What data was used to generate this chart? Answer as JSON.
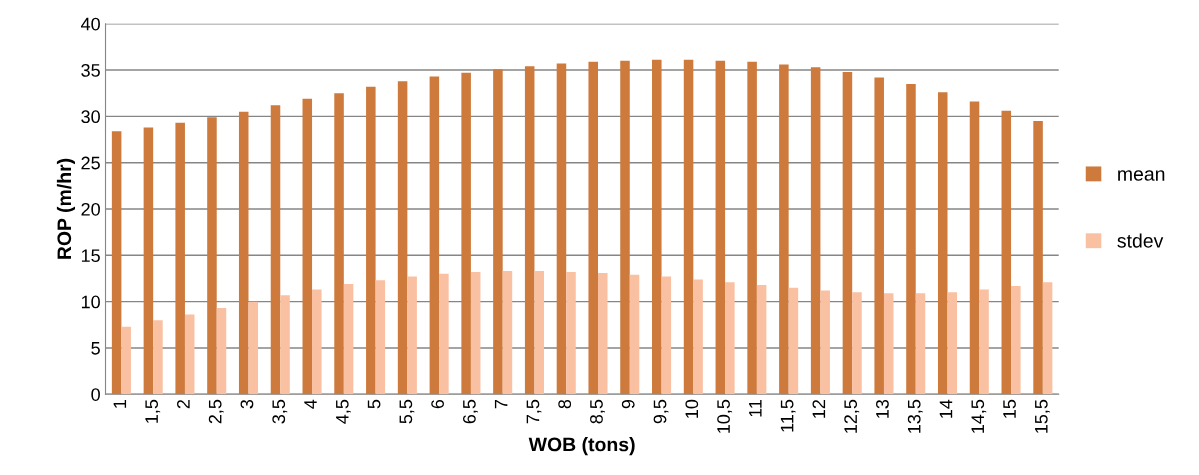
{
  "chart_data": {
    "type": "bar",
    "xlabel": "WOB (tons)",
    "ylabel": "ROP (m/hr)",
    "categories": [
      "1",
      "1,5",
      "2",
      "2,5",
      "3",
      "3,5",
      "4",
      "4,5",
      "5",
      "5,5",
      "6",
      "6,5",
      "7",
      "7,5",
      "8",
      "8,5",
      "9",
      "9,5",
      "10",
      "10,5",
      "11",
      "11,5",
      "12",
      "12,5",
      "13",
      "13,5",
      "14",
      "14,5",
      "15",
      "15,5"
    ],
    "series": [
      {
        "name": "mean",
        "color": "#cd7a3c",
        "values": [
          28.4,
          28.8,
          29.3,
          29.9,
          30.5,
          31.2,
          31.9,
          32.5,
          33.2,
          33.8,
          34.3,
          34.7,
          35.1,
          35.4,
          35.7,
          35.9,
          36.0,
          36.1,
          36.1,
          36.0,
          35.9,
          35.6,
          35.3,
          34.8,
          34.2,
          33.5,
          32.6,
          31.6,
          30.6,
          29.5
        ]
      },
      {
        "name": "stdev",
        "color": "#f9c0a2",
        "values": [
          7.3,
          8.0,
          8.6,
          9.3,
          10.0,
          10.7,
          11.3,
          11.9,
          12.3,
          12.7,
          13.0,
          13.2,
          13.3,
          13.3,
          13.2,
          13.1,
          12.9,
          12.7,
          12.4,
          12.1,
          11.8,
          11.5,
          11.2,
          11.0,
          10.9,
          10.9,
          11.0,
          11.3,
          11.7,
          12.1
        ]
      }
    ],
    "ylim": [
      0,
      40
    ],
    "yticks": [
      0,
      5,
      10,
      15,
      20,
      25,
      30,
      35,
      40
    ],
    "grid": "y",
    "legend": "right"
  }
}
